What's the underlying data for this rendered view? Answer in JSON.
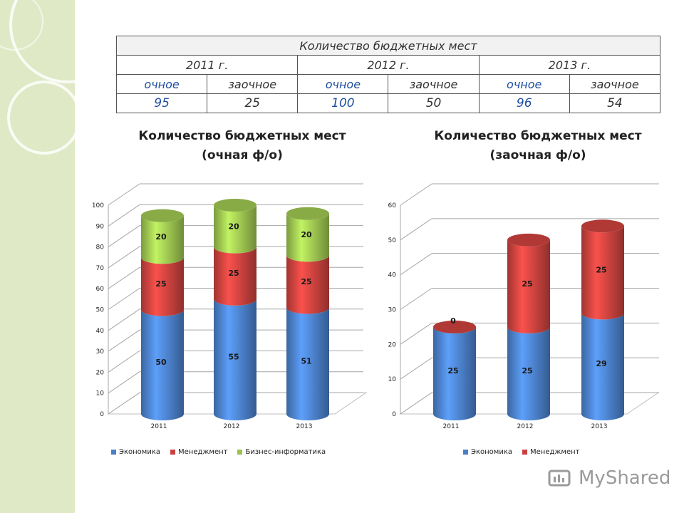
{
  "table": {
    "title": "Количество бюджетных мест",
    "years": [
      "2011 г.",
      "2012 г.",
      "2013 г."
    ],
    "modes": [
      "очное",
      "заочное",
      "очное",
      "заочное",
      "очное",
      "заочное"
    ],
    "values": [
      "95",
      "25",
      "100",
      "50",
      "96",
      "54"
    ]
  },
  "chart_data": [
    {
      "type": "bar",
      "title_line1": "Количество бюджетных мест",
      "title_line2": "(очная ф/о)",
      "categories": [
        "2011",
        "2012",
        "2013"
      ],
      "ylim": [
        0,
        100
      ],
      "yticks": [
        0,
        10,
        20,
        30,
        40,
        50,
        60,
        70,
        80,
        90,
        100
      ],
      "stacked": true,
      "series": [
        {
          "name": "Экономика",
          "color": "#4a7fc8",
          "values": [
            50,
            55,
            51
          ]
        },
        {
          "name": "Менеджмент",
          "color": "#c8413d",
          "values": [
            25,
            25,
            25
          ]
        },
        {
          "name": "Бизнес-информатика",
          "color": "#9bc24f",
          "values": [
            20,
            20,
            20
          ]
        }
      ]
    },
    {
      "type": "bar",
      "title_line1": "Количество бюджетных мест",
      "title_line2": "(заочная ф/о)",
      "categories": [
        "2011",
        "2012",
        "2013"
      ],
      "ylim": [
        0,
        60
      ],
      "yticks": [
        0,
        10,
        20,
        30,
        40,
        50,
        60
      ],
      "stacked": true,
      "series": [
        {
          "name": "Экономика",
          "color": "#4a7fc8",
          "values": [
            25,
            25,
            29
          ]
        },
        {
          "name": "Менеджмент",
          "color": "#c8413d",
          "values": [
            0,
            25,
            25
          ]
        }
      ]
    }
  ],
  "watermark": {
    "text": "MyShared"
  }
}
